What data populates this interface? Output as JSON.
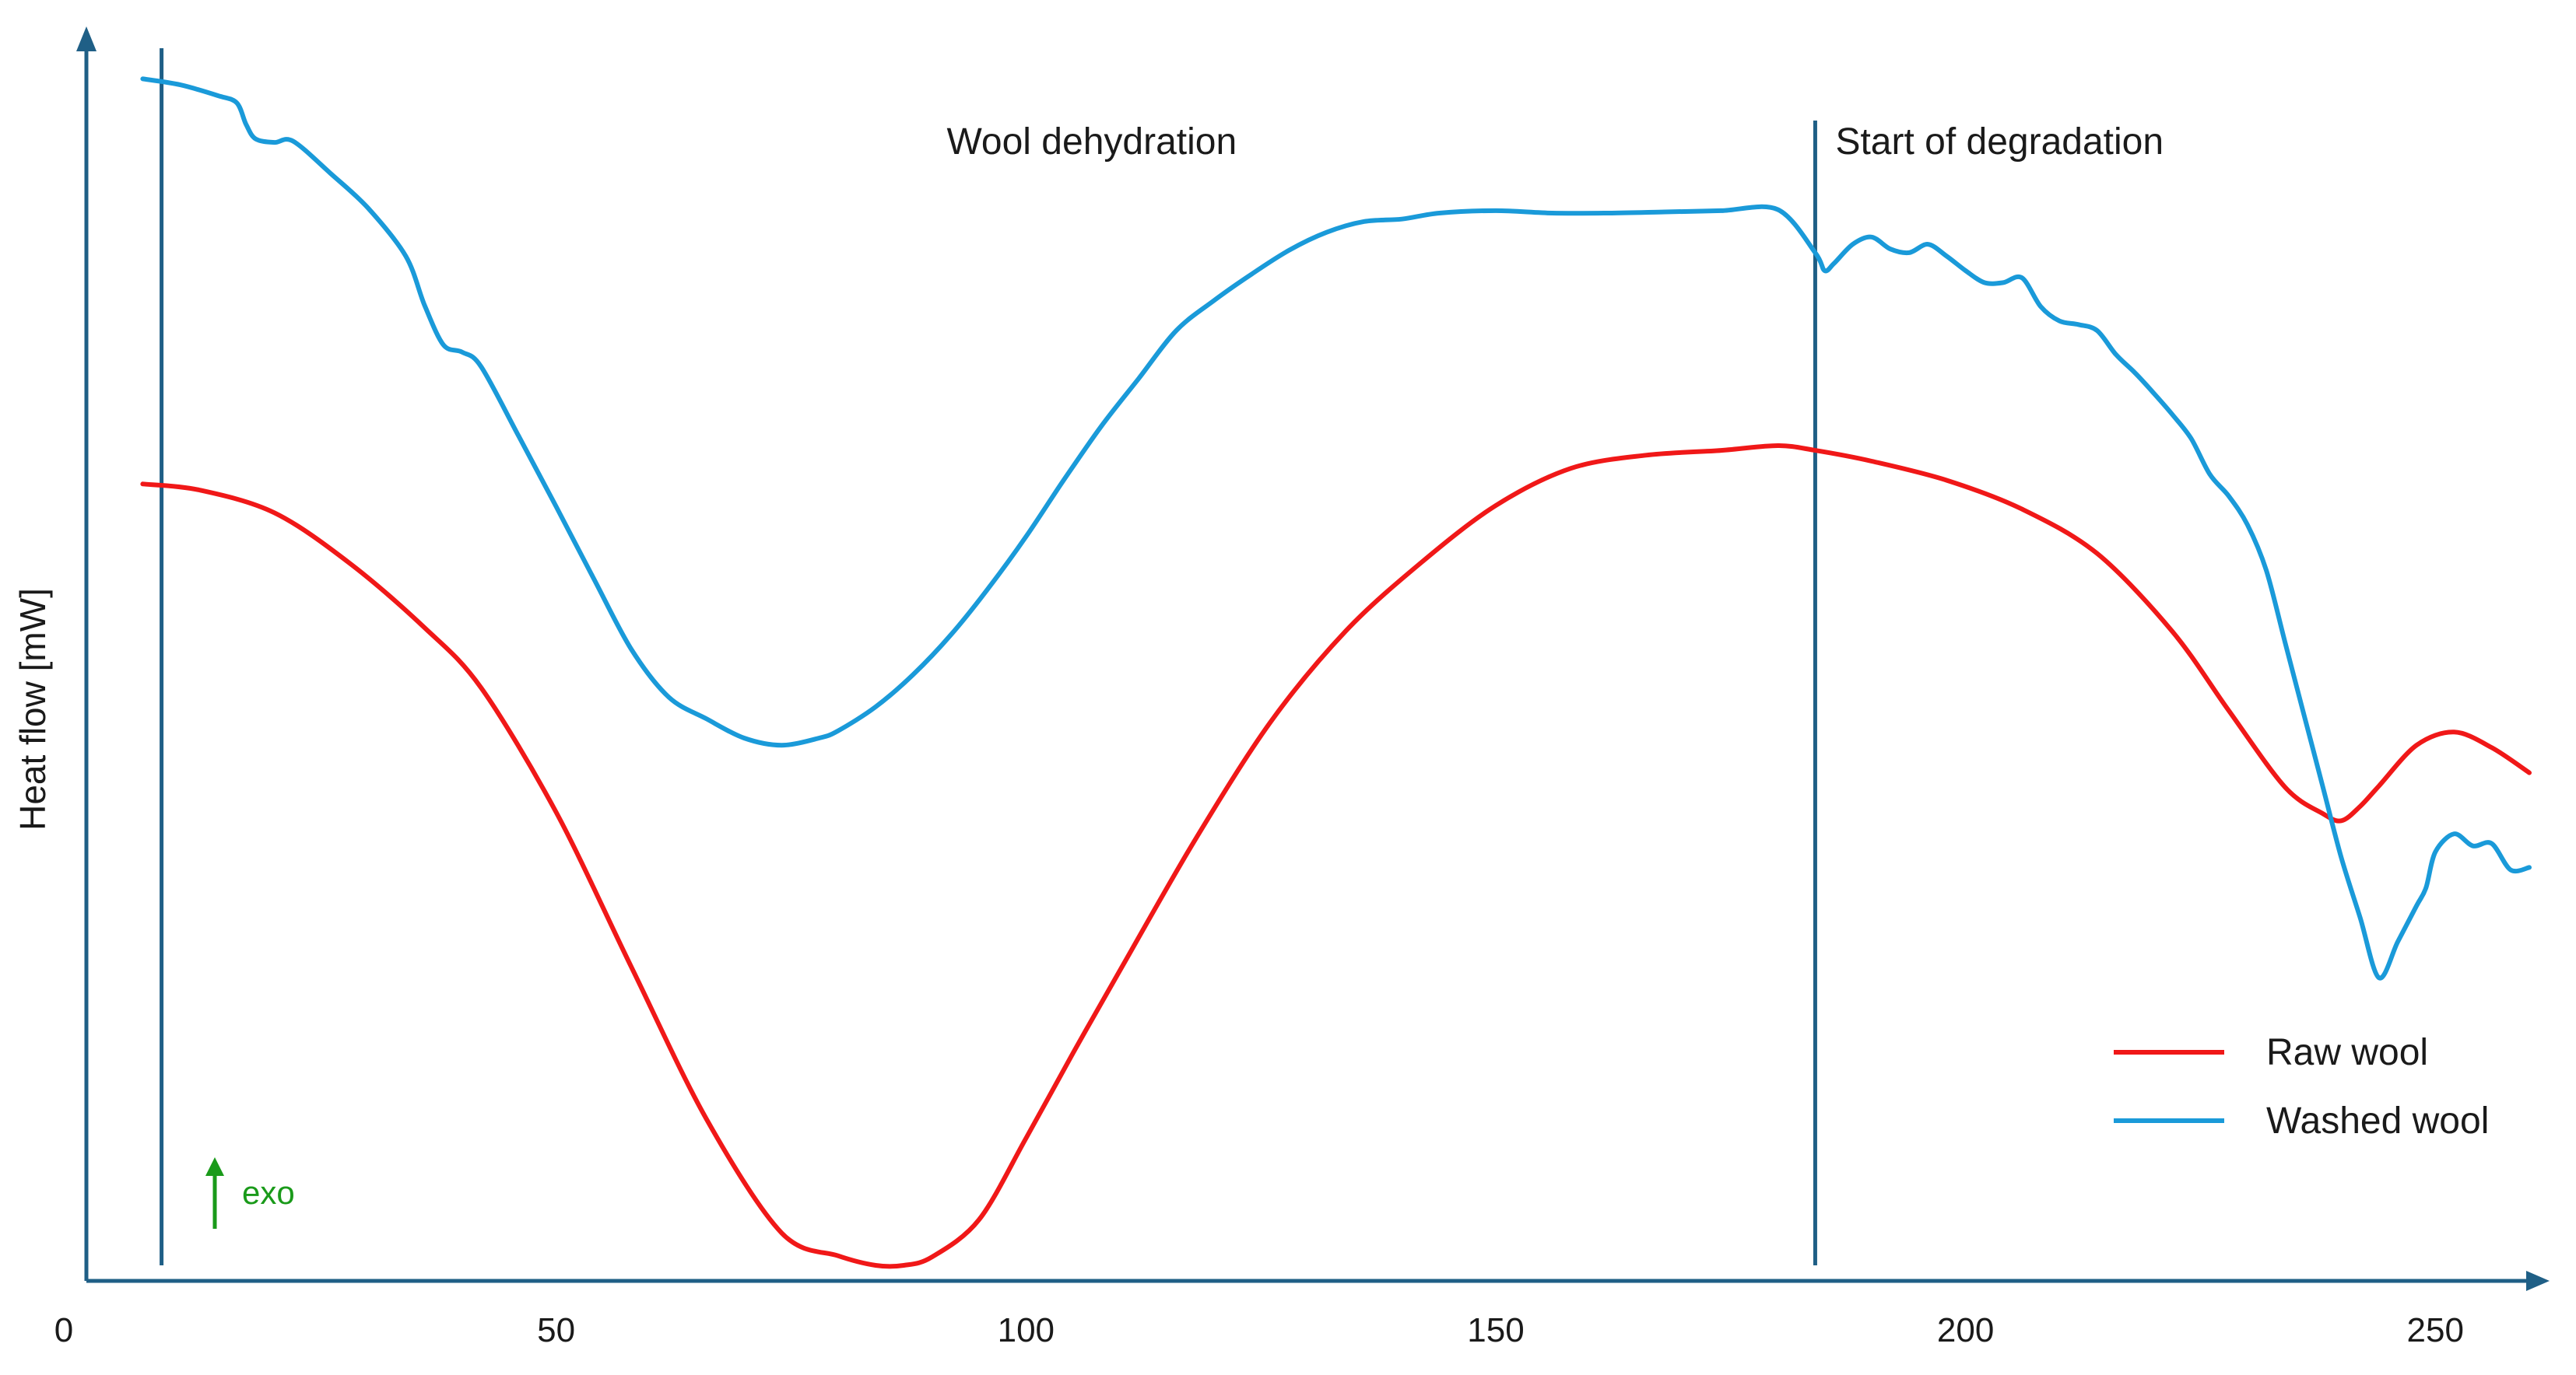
{
  "chart_data": {
    "type": "line",
    "title": "",
    "xlabel": "",
    "ylabel": "Heat flow  [mW]",
    "xlim": [
      0,
      260
    ],
    "ylim": [
      0,
      100
    ],
    "x_ticks": [
      0,
      50,
      100,
      150,
      200,
      250
    ],
    "grid": false,
    "legend_position": "bottom-right",
    "exo_label": "exo",
    "vertical_markers": [
      {
        "x": 8,
        "label": "Wool dehydration",
        "label_x": 107
      },
      {
        "x": 184,
        "label": "Start of degradation",
        "label_x": 184
      }
    ],
    "series": [
      {
        "name": "Raw wool",
        "color": "#f01818",
        "x": [
          6,
          12,
          20,
          28,
          36,
          42,
          50,
          58,
          66,
          74,
          80,
          84,
          87,
          90,
          95,
          100,
          105,
          110,
          118,
          126,
          134,
          142,
          150,
          158,
          166,
          174,
          180,
          184,
          190,
          198,
          206,
          214,
          222,
          228,
          234,
          238,
          240,
          242,
          244,
          248,
          252,
          256,
          260
        ],
        "y": [
          65.2,
          64.7,
          62.8,
          58.6,
          53.2,
          48.2,
          37.8,
          24.9,
          12.2,
          2.7,
          0.8,
          0.0,
          0.0,
          0.7,
          3.8,
          10.6,
          17.7,
          24.6,
          35.5,
          45.3,
          52.9,
          58.6,
          63.4,
          66.5,
          67.6,
          68.0,
          68.4,
          68.0,
          67.1,
          65.5,
          63.1,
          59.4,
          52.9,
          46.3,
          39.9,
          37.7,
          37.1,
          38.3,
          40.0,
          43.4,
          44.5,
          43.2,
          41.1
        ]
      },
      {
        "name": "Washed wool",
        "color": "#1a9ad9",
        "x": [
          6,
          10,
          14,
          16,
          17,
          18,
          20,
          22,
          26,
          30,
          34,
          36,
          38,
          40,
          42,
          46,
          50,
          54,
          58,
          62,
          66,
          70,
          74,
          78,
          80,
          84,
          88,
          92,
          96,
          100,
          104,
          108,
          112,
          116,
          120,
          124,
          128,
          132,
          136,
          140,
          144,
          150,
          156,
          162,
          168,
          174,
          180,
          184,
          185,
          186,
          188,
          190,
          192,
          194,
          196,
          198,
          200,
          202,
          204,
          206,
          208,
          210,
          212,
          214,
          216,
          218,
          220,
          222,
          224,
          226,
          228,
          230,
          232,
          234,
          236,
          238,
          240,
          242,
          244,
          246,
          248,
          249,
          250,
          252,
          254,
          256,
          258,
          260
        ],
        "y": [
          99.0,
          98.5,
          97.6,
          97.0,
          95.2,
          94.0,
          93.7,
          93.8,
          91.1,
          88.2,
          84.2,
          80.1,
          76.8,
          76.2,
          75.0,
          69.2,
          63.3,
          57.3,
          51.4,
          47.4,
          45.6,
          44.0,
          43.4,
          44.0,
          44.6,
          46.6,
          49.3,
          52.6,
          56.5,
          60.8,
          65.5,
          70.0,
          74.0,
          78.0,
          80.5,
          82.7,
          84.7,
          86.2,
          87.1,
          87.3,
          87.8,
          88.0,
          87.8,
          87.8,
          87.9,
          88.0,
          88.1,
          84.5,
          83.0,
          83.6,
          85.2,
          85.8,
          84.8,
          84.5,
          85.2,
          84.2,
          83.0,
          82.0,
          82.0,
          82.4,
          80.0,
          78.8,
          78.5,
          78.0,
          76.0,
          74.5,
          72.8,
          71.0,
          69.0,
          66.0,
          64.2,
          61.8,
          58.0,
          52.0,
          46.0,
          40.0,
          34.0,
          29.0,
          24.0,
          27.0,
          30.0,
          31.5,
          34.5,
          36.0,
          35.0,
          35.2,
          33.0,
          33.2
        ]
      }
    ]
  }
}
